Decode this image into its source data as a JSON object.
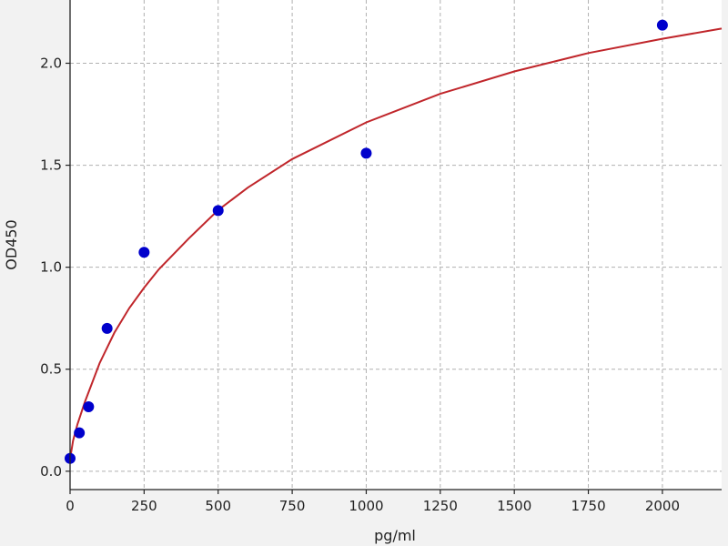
{
  "chart_data": {
    "type": "scatter",
    "title": "",
    "xlabel": "pg/ml",
    "ylabel": "OD450",
    "xlim": [
      0,
      2200
    ],
    "ylim": [
      -0.09,
      2.31
    ],
    "xticks": [
      0,
      250,
      500,
      750,
      1000,
      1250,
      1500,
      1750,
      2000
    ],
    "xtick_labels": [
      "0",
      "250",
      "500",
      "750",
      "1000",
      "1250",
      "1500",
      "1750",
      "2000"
    ],
    "yticks": [
      0.0,
      0.5,
      1.0,
      1.5,
      2.0
    ],
    "ytick_labels": [
      "0.0",
      "0.5",
      "1.0",
      "1.5",
      "2.0"
    ],
    "grid": true,
    "points": {
      "x": [
        0,
        31.25,
        62.5,
        125,
        250,
        500,
        1000,
        2000
      ],
      "y": [
        0.063,
        0.188,
        0.316,
        0.7,
        1.073,
        1.278,
        1.559,
        2.187
      ],
      "color": "#0000cc"
    },
    "fit_curve": {
      "x": [
        0,
        10,
        25,
        50,
        100,
        150,
        200,
        250,
        300,
        400,
        500,
        600,
        750,
        1000,
        1250,
        1500,
        1750,
        2000,
        2200
      ],
      "y": [
        0.06,
        0.15,
        0.23,
        0.34,
        0.53,
        0.68,
        0.8,
        0.9,
        0.99,
        1.14,
        1.28,
        1.39,
        1.53,
        1.71,
        1.85,
        1.96,
        2.05,
        2.12,
        2.17
      ],
      "color": "#c0262b"
    },
    "background": "#f2f2f2",
    "plot_background": "#ffffff"
  }
}
